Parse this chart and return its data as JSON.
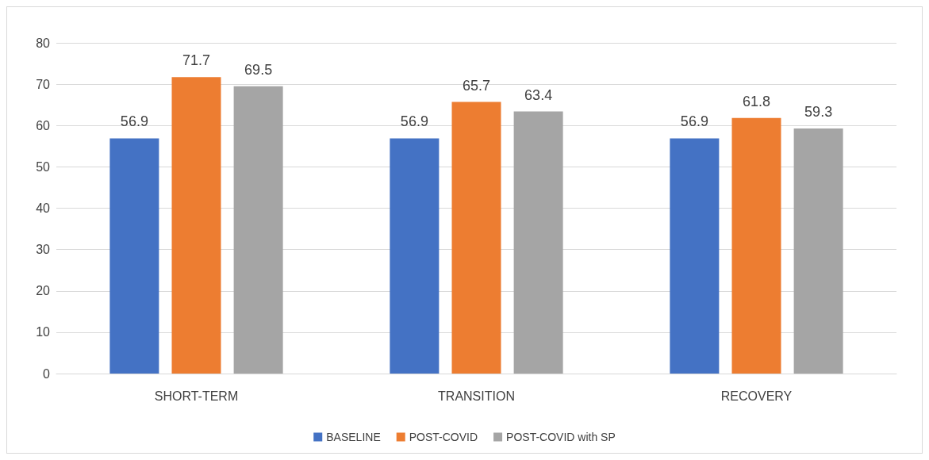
{
  "chart_data": {
    "type": "bar",
    "categories": [
      "SHORT-TERM",
      "TRANSITION",
      "RECOVERY"
    ],
    "series": [
      {
        "name": "BASELINE",
        "color": "#4472c4",
        "values": [
          56.9,
          56.9,
          56.9
        ]
      },
      {
        "name": "POST-COVID",
        "color": "#ed7d31",
        "values": [
          71.7,
          65.7,
          61.8
        ]
      },
      {
        "name": "POST-COVID with SP",
        "color": "#a5a5a5",
        "values": [
          69.5,
          63.4,
          59.3
        ]
      }
    ],
    "ylim": [
      0,
      80
    ],
    "yticks": [
      0,
      10,
      20,
      30,
      40,
      50,
      60,
      70,
      80
    ],
    "grid": "y",
    "legend": "bottom",
    "data_labels": true
  }
}
